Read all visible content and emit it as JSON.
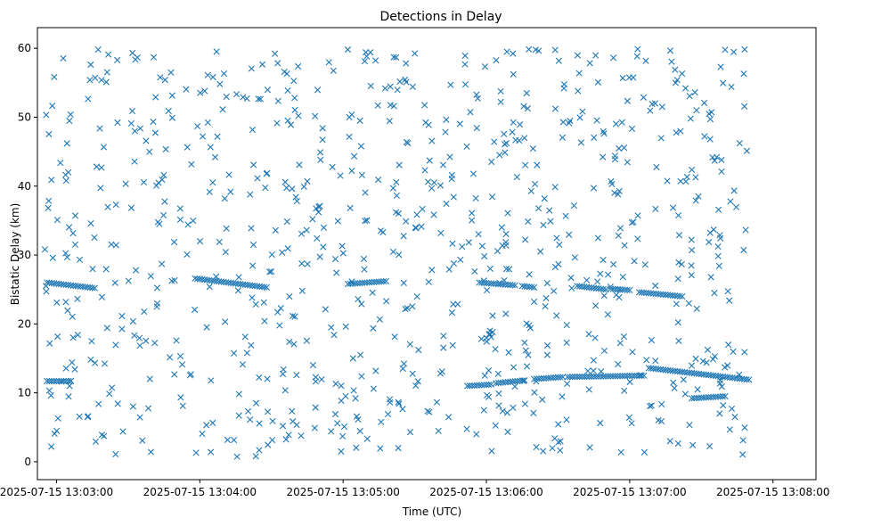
{
  "chart_data": {
    "type": "scatter",
    "title": "Detections in Delay",
    "xlabel": "Time (UTC)",
    "ylabel": "Bistatic Delay (km)",
    "marker": "x",
    "color": "#1f77b4",
    "grid": false,
    "x_unit": "seconds after 2025-07-15 13:00:00 UTC",
    "xlim": [
      172,
      498
    ],
    "ylim": [
      -2.6,
      63
    ],
    "x_ticks": [
      {
        "value": 180,
        "label": "2025-07-15 13:03:00"
      },
      {
        "value": 240,
        "label": "2025-07-15 13:04:00"
      },
      {
        "value": 300,
        "label": "2025-07-15 13:05:00"
      },
      {
        "value": 360,
        "label": "2025-07-15 13:06:00"
      },
      {
        "value": 420,
        "label": "2025-07-15 13:07:00"
      },
      {
        "value": 480,
        "label": "2025-07-15 13:08:00"
      }
    ],
    "y_ticks": [
      {
        "value": 0,
        "label": "0"
      },
      {
        "value": 10,
        "label": "10"
      },
      {
        "value": 20,
        "label": "20"
      },
      {
        "value": 30,
        "label": "30"
      },
      {
        "value": 40,
        "label": "40"
      },
      {
        "value": 50,
        "label": "50"
      },
      {
        "value": 60,
        "label": "60"
      }
    ],
    "tracks": [
      {
        "name": "track-1",
        "x_start": 176,
        "x_end": 196,
        "y_start": 26.0,
        "y_end": 25.2
      },
      {
        "name": "track-2",
        "x_start": 238,
        "x_end": 268,
        "y_start": 26.6,
        "y_end": 25.3
      },
      {
        "name": "track-3",
        "x_start": 302,
        "x_end": 318,
        "y_start": 25.8,
        "y_end": 26.2
      },
      {
        "name": "track-4",
        "x_start": 357,
        "x_end": 372,
        "y_start": 26.0,
        "y_end": 25.6
      },
      {
        "name": "track-5",
        "x_start": 375,
        "x_end": 380,
        "y_start": 25.5,
        "y_end": 25.3
      },
      {
        "name": "track-6",
        "x_start": 398,
        "x_end": 410,
        "y_start": 25.5,
        "y_end": 25.0
      },
      {
        "name": "track-7",
        "x_start": 412,
        "x_end": 420,
        "y_start": 25.1,
        "y_end": 24.9
      },
      {
        "name": "track-8",
        "x_start": 424,
        "x_end": 442,
        "y_start": 24.6,
        "y_end": 24.0
      },
      {
        "name": "track-9",
        "x_start": 176,
        "x_end": 186,
        "y_start": 11.7,
        "y_end": 11.7
      },
      {
        "name": "track-10",
        "x_start": 352,
        "x_end": 362,
        "y_start": 11.0,
        "y_end": 11.2
      },
      {
        "name": "track-11",
        "x_start": 364,
        "x_end": 376,
        "y_start": 11.4,
        "y_end": 11.8
      },
      {
        "name": "track-12",
        "x_start": 380,
        "x_end": 392,
        "y_start": 12.0,
        "y_end": 12.3
      },
      {
        "name": "track-13",
        "x_start": 394,
        "x_end": 426,
        "y_start": 12.3,
        "y_end": 12.5
      },
      {
        "name": "track-14",
        "x_start": 428,
        "x_end": 470,
        "y_start": 13.6,
        "y_end": 11.9
      },
      {
        "name": "track-15",
        "x_start": 446,
        "x_end": 460,
        "y_start": 9.2,
        "y_end": 9.5
      }
    ],
    "track_point_spacing_seconds": 1.0,
    "clutter_points": {
      "count": 850,
      "x_range": [
        175,
        470
      ],
      "y_range": [
        0.5,
        60
      ]
    }
  }
}
